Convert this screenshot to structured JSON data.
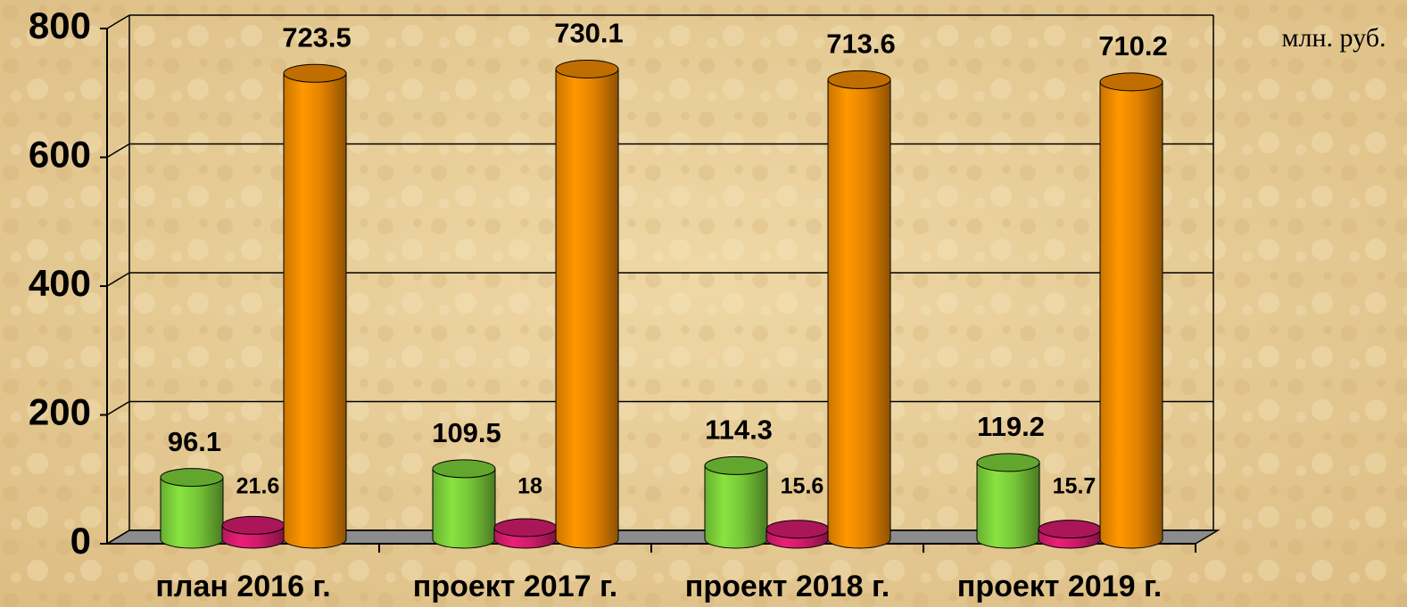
{
  "chart_data": {
    "type": "bar",
    "unit_label": "млн. руб.",
    "categories": [
      "план 2016 г.",
      "проект 2017 г.",
      "проект 2018 г.",
      "проект 2019 г."
    ],
    "series": [
      {
        "color": "#7ccf3a",
        "values": [
          96.1,
          109.5,
          114.3,
          119.2
        ]
      },
      {
        "color": "#d61c6e",
        "values": [
          21.6,
          18.0,
          15.6,
          15.7
        ]
      },
      {
        "color": "#f08a00",
        "values": [
          723.5,
          730.1,
          713.6,
          710.2
        ]
      }
    ],
    "ylim": [
      0,
      800
    ],
    "yticks": [
      0,
      200,
      400,
      600,
      800
    ],
    "grid": true
  }
}
